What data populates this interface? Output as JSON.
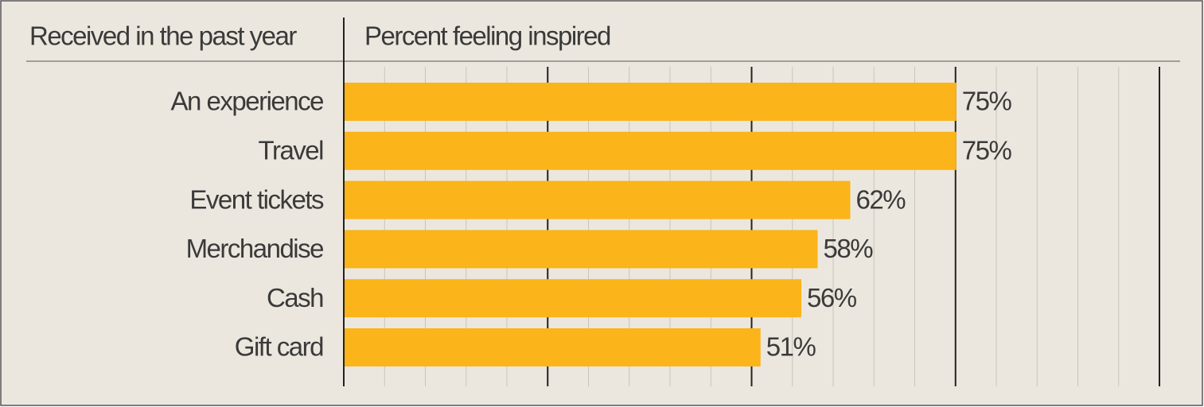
{
  "chart_data": {
    "type": "bar",
    "orientation": "horizontal",
    "category_axis_title": "Received in the past year",
    "value_axis_title": "Percent feeling inspired",
    "categories": [
      "An experience",
      "Travel",
      "Event tickets",
      "Merchandise",
      "Cash",
      "Gift card"
    ],
    "values": [
      75,
      75,
      62,
      58,
      56,
      51
    ],
    "value_labels": [
      "75%",
      "75%",
      "62%",
      "58%",
      "56%",
      "51%"
    ],
    "color": "#fbb419",
    "xlim": [
      0,
      100
    ],
    "xticks": [
      0,
      25,
      50,
      75,
      100
    ],
    "minor_xticks": [
      5,
      10,
      15,
      20,
      30,
      35,
      40,
      45,
      55,
      60,
      65,
      70,
      80,
      85,
      90,
      95
    ],
    "grid": true
  }
}
